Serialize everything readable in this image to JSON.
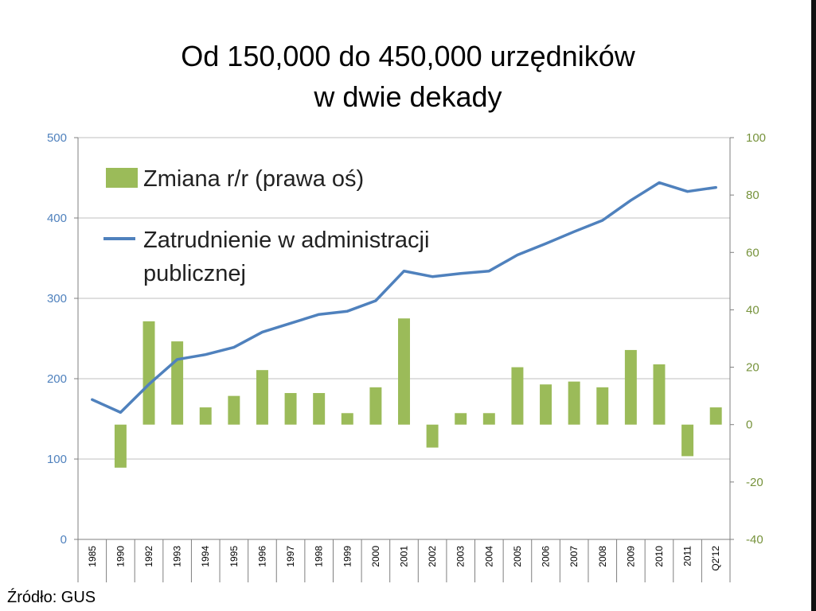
{
  "title_line1": "Od 150,000 do 450,000 urzędników",
  "title_line2": "w dwie dekady",
  "source": "Źródło: GUS",
  "colors": {
    "line": "#4f81bd",
    "bar": "#9bbb59",
    "left_axis": "#4f81bd",
    "right_axis": "#77933c",
    "grid": "#bfbfbf"
  },
  "chart_data": {
    "type": "bar+line",
    "categories": [
      "1985",
      "1990",
      "1992",
      "1993",
      "1994",
      "1995",
      "1996",
      "1997",
      "1998",
      "1999",
      "2000",
      "2001",
      "2002",
      "2003",
      "2004",
      "2005",
      "2006",
      "2007",
      "2008",
      "2009",
      "2010",
      "2011",
      "Q2'12"
    ],
    "series": [
      {
        "name": "Zmiana r/r (prawa oś)",
        "type": "bar",
        "axis": "right",
        "values": [
          null,
          -15,
          36,
          29,
          6,
          10,
          19,
          11,
          11,
          4,
          13,
          37,
          -8,
          4,
          4,
          20,
          14,
          15,
          13,
          26,
          21,
          -11,
          6
        ]
      },
      {
        "name": "Zatrudnienie w administracji publicznej",
        "legend_lines": [
          "Zatrudnienie w administracji",
          "publicznej"
        ],
        "type": "line",
        "axis": "left",
        "values": [
          174,
          158,
          193,
          224,
          230,
          239,
          258,
          269,
          280,
          284,
          297,
          334,
          327,
          331,
          334,
          354,
          368,
          383,
          397,
          422,
          444,
          433,
          438
        ]
      }
    ],
    "left_axis": {
      "min": 0,
      "max": 500,
      "ticks": [
        "0",
        "100",
        "200",
        "300",
        "400",
        "500"
      ]
    },
    "right_axis": {
      "min": -40,
      "max": 100,
      "ticks": [
        "-40",
        "-20",
        "0",
        "20",
        "40",
        "60",
        "80",
        "100"
      ]
    },
    "grid": true,
    "legend_position": "top-left"
  }
}
